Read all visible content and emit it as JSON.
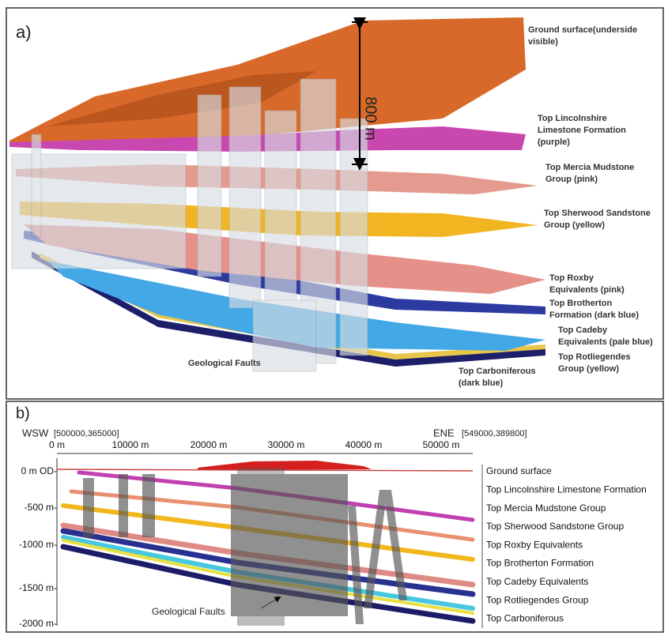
{
  "panel_a": {
    "label": "a)",
    "scale_bar": "800 m",
    "faults_label": "Geological Faults",
    "layers": [
      [
        "Ground surface(underside",
        "visible)"
      ],
      [
        "Top Lincolnshire",
        "Limestone Formation",
        "(purple)"
      ],
      [
        "Top Mercia Mudstone",
        "Group (pink)"
      ],
      [
        "Top Sherwood Sandstone",
        "Group (yellow)"
      ],
      [
        "Top Roxby",
        "Equivalents (pink)"
      ],
      [
        "Top Brotherton",
        "Formation (dark blue)"
      ],
      [
        "Top Cadeby",
        "Equivalents (pale blue)"
      ],
      [
        "Top Rotliegendes",
        "Group (yellow)"
      ],
      [
        "Top Carboniferous",
        "(dark blue)"
      ]
    ]
  },
  "panel_b": {
    "label": "b)",
    "west": "WSW",
    "west_coords": "[500000,365000]",
    "east": "ENE",
    "east_coords": "[549000,389800]",
    "x_ticks": [
      "0 m",
      "10000 m",
      "20000 m",
      "30000 m",
      "40000 m",
      "50000 m"
    ],
    "y_ticks": [
      "0 m OD-",
      "-500 m-",
      "-1000 m-",
      "-1500 m-",
      "-2000 m-"
    ],
    "faults_label": "Geological Faults",
    "layers": [
      "Ground surface",
      "Top Lincolnshire Limestone Formation",
      "Top Mercia Mudstone Group",
      "Top Sherwood Sandstone Group",
      "Top Roxby Equivalents",
      "Top Brotherton Formation",
      "Top Cadeby Equivalents",
      "Top Rotliegendes Group",
      "Top Carboniferous"
    ]
  }
}
